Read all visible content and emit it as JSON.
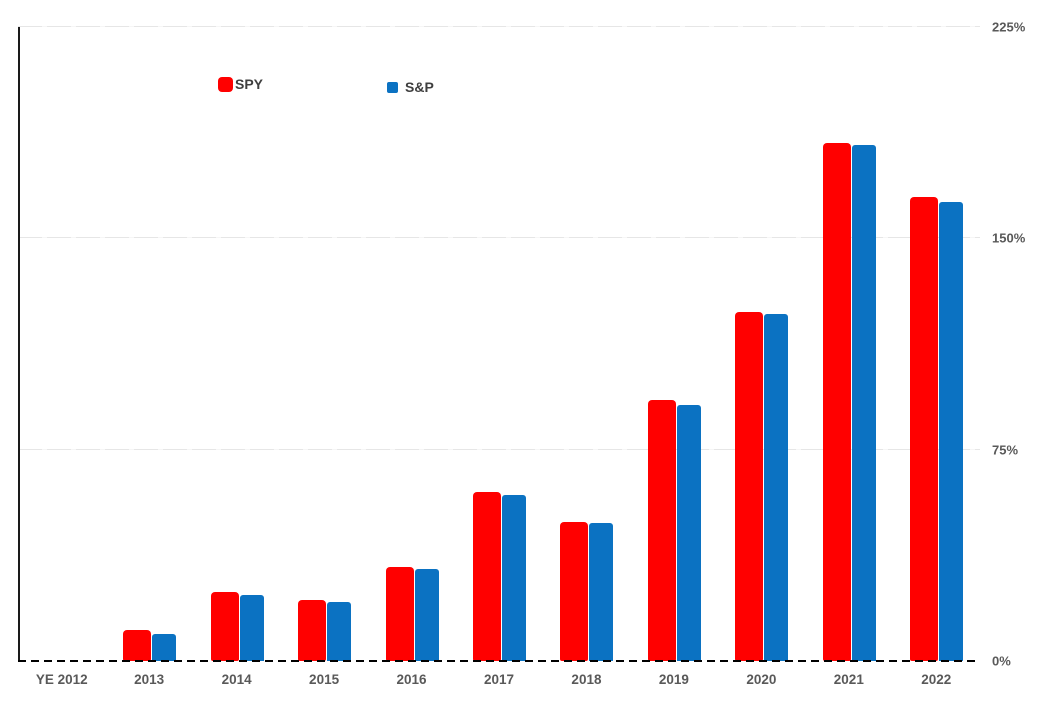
{
  "chart_data": {
    "type": "bar",
    "title": "",
    "xlabel": "",
    "ylabel": "",
    "categories": [
      "YE 2012",
      "2013",
      "2014",
      "2015",
      "2016",
      "2017",
      "2018",
      "2019",
      "2020",
      "2021",
      "2022"
    ],
    "series": [
      {
        "name": "SPY",
        "color": "#FF0000",
        "values": [
          0,
          11,
          24.5,
          21.5,
          33.5,
          60,
          49.5,
          92.5,
          124,
          184,
          164.5
        ]
      },
      {
        "name": "S&P",
        "color": "#0B72C2",
        "values": [
          0,
          9.5,
          23.5,
          21,
          32.5,
          59,
          49,
          91,
          123,
          183,
          163
        ]
      }
    ],
    "ylim": [
      0,
      225
    ],
    "yticks": [
      {
        "value": 0,
        "label": "0%"
      },
      {
        "value": 75,
        "label": "75%"
      },
      {
        "value": 150,
        "label": "150%"
      },
      {
        "value": 225,
        "label": "225%"
      }
    ],
    "grid": "horizontal light-gray lines at 75/150/225; dashed black zero baseline",
    "legend_position": "inside-top-left"
  },
  "colors": {
    "background": "#FFFFFF",
    "axis_line": "#1A1A1A",
    "tick_label": "#595959",
    "legend_text": "#3F3F3F",
    "gridline": "#E6E6E6"
  }
}
